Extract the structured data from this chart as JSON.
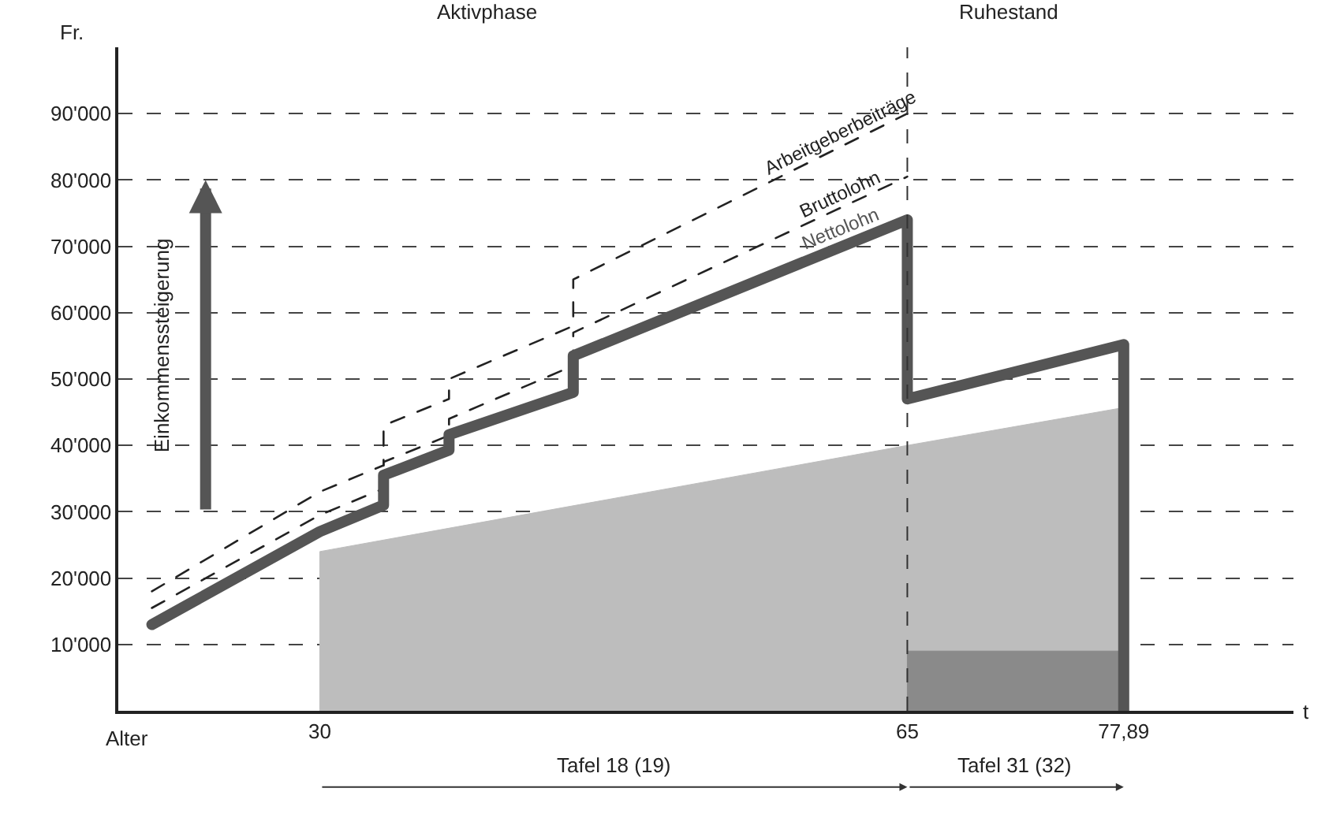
{
  "chart_data": {
    "type": "line",
    "xlabel": "Alter",
    "ylabel": "Fr.",
    "xlim": [
      18,
      88
    ],
    "xticks": [
      30,
      65,
      {
        "value": 77.89,
        "label": "77,89"
      }
    ],
    "ylim": [
      0,
      100000
    ],
    "yticks": [
      {
        "value": 10000,
        "label": "10'000"
      },
      {
        "value": 20000,
        "label": "20'000"
      },
      {
        "value": 30000,
        "label": "30'000"
      },
      {
        "value": 40000,
        "label": "40'000"
      },
      {
        "value": 50000,
        "label": "50'000"
      },
      {
        "value": 60000,
        "label": "60'000"
      },
      {
        "value": 70000,
        "label": "70'000"
      },
      {
        "value": 80000,
        "label": "80'000"
      },
      {
        "value": 90000,
        "label": "90'000"
      }
    ],
    "grid": "y",
    "series": [
      {
        "type": "area",
        "color": "#bdbdbd",
        "x": [
          30,
          30,
          65,
          77.89,
          77.89
        ],
        "values": [
          0,
          24000,
          40000,
          45700,
          0
        ]
      },
      {
        "type": "area",
        "color": "#8a8a8a",
        "x": [
          65,
          65,
          77.89,
          77.89
        ],
        "values": [
          0,
          9000,
          9000,
          0
        ]
      },
      {
        "name": "Arbeitgeberbeiträge",
        "color": "#222222",
        "line_style": "dashed",
        "x": [
          20,
          30,
          33.8,
          33.8,
          37.7,
          37.7,
          45.1,
          45.1,
          65
        ],
        "values": [
          18000,
          33000,
          37000,
          43000,
          47000,
          50000,
          58000,
          65000,
          90000
        ]
      },
      {
        "name": "Bruttolohn",
        "color": "#222222",
        "line_style": "dashed",
        "x": [
          20,
          30,
          33.8,
          33.8,
          37.7,
          37.7,
          45.1,
          45.1,
          65
        ],
        "values": [
          15500,
          29500,
          33500,
          37500,
          41500,
          44000,
          52000,
          57000,
          80500
        ]
      },
      {
        "name": "Nettolohn",
        "color": "#555555",
        "line_style": "solid",
        "x": [
          20,
          30,
          33.8,
          33.8,
          37.7,
          37.7,
          45.1,
          45.1,
          65,
          65,
          77.89,
          77.89
        ],
        "values": [
          13000,
          27000,
          31000,
          35500,
          39300,
          41600,
          48000,
          53500,
          74000,
          47000,
          55200,
          0
        ]
      }
    ],
    "ref_lines": [
      {
        "axis": "x",
        "value": 65,
        "line_style": "dashed",
        "color": "#333333"
      }
    ],
    "annotations": [
      "Aktivphase",
      "Ruhestand",
      "Einkommenssteigerung",
      "Tafel 18 (19)",
      "Tafel 31 (32)",
      "t"
    ]
  }
}
